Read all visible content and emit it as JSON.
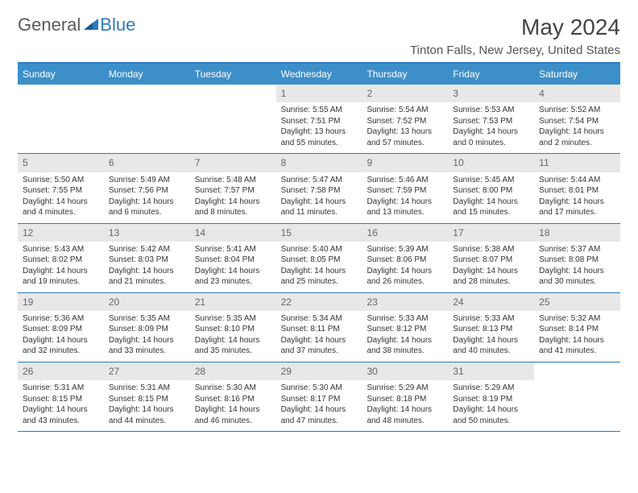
{
  "brand": {
    "name1": "General",
    "name2": "Blue"
  },
  "title": "May 2024",
  "location": "Tinton Falls, New Jersey, United States",
  "colors": {
    "header_bg": "#3d8fc9",
    "border": "#2b7bbf",
    "daynum_bg": "#e8e8e8",
    "text": "#333333"
  },
  "dayHeaders": [
    "Sunday",
    "Monday",
    "Tuesday",
    "Wednesday",
    "Thursday",
    "Friday",
    "Saturday"
  ],
  "weeks": [
    [
      {
        "n": "",
        "sr": "",
        "ss": "",
        "dl": ""
      },
      {
        "n": "",
        "sr": "",
        "ss": "",
        "dl": ""
      },
      {
        "n": "",
        "sr": "",
        "ss": "",
        "dl": ""
      },
      {
        "n": "1",
        "sr": "Sunrise: 5:55 AM",
        "ss": "Sunset: 7:51 PM",
        "dl": "Daylight: 13 hours and 55 minutes."
      },
      {
        "n": "2",
        "sr": "Sunrise: 5:54 AM",
        "ss": "Sunset: 7:52 PM",
        "dl": "Daylight: 13 hours and 57 minutes."
      },
      {
        "n": "3",
        "sr": "Sunrise: 5:53 AM",
        "ss": "Sunset: 7:53 PM",
        "dl": "Daylight: 14 hours and 0 minutes."
      },
      {
        "n": "4",
        "sr": "Sunrise: 5:52 AM",
        "ss": "Sunset: 7:54 PM",
        "dl": "Daylight: 14 hours and 2 minutes."
      }
    ],
    [
      {
        "n": "5",
        "sr": "Sunrise: 5:50 AM",
        "ss": "Sunset: 7:55 PM",
        "dl": "Daylight: 14 hours and 4 minutes."
      },
      {
        "n": "6",
        "sr": "Sunrise: 5:49 AM",
        "ss": "Sunset: 7:56 PM",
        "dl": "Daylight: 14 hours and 6 minutes."
      },
      {
        "n": "7",
        "sr": "Sunrise: 5:48 AM",
        "ss": "Sunset: 7:57 PM",
        "dl": "Daylight: 14 hours and 8 minutes."
      },
      {
        "n": "8",
        "sr": "Sunrise: 5:47 AM",
        "ss": "Sunset: 7:58 PM",
        "dl": "Daylight: 14 hours and 11 minutes."
      },
      {
        "n": "9",
        "sr": "Sunrise: 5:46 AM",
        "ss": "Sunset: 7:59 PM",
        "dl": "Daylight: 14 hours and 13 minutes."
      },
      {
        "n": "10",
        "sr": "Sunrise: 5:45 AM",
        "ss": "Sunset: 8:00 PM",
        "dl": "Daylight: 14 hours and 15 minutes."
      },
      {
        "n": "11",
        "sr": "Sunrise: 5:44 AM",
        "ss": "Sunset: 8:01 PM",
        "dl": "Daylight: 14 hours and 17 minutes."
      }
    ],
    [
      {
        "n": "12",
        "sr": "Sunrise: 5:43 AM",
        "ss": "Sunset: 8:02 PM",
        "dl": "Daylight: 14 hours and 19 minutes."
      },
      {
        "n": "13",
        "sr": "Sunrise: 5:42 AM",
        "ss": "Sunset: 8:03 PM",
        "dl": "Daylight: 14 hours and 21 minutes."
      },
      {
        "n": "14",
        "sr": "Sunrise: 5:41 AM",
        "ss": "Sunset: 8:04 PM",
        "dl": "Daylight: 14 hours and 23 minutes."
      },
      {
        "n": "15",
        "sr": "Sunrise: 5:40 AM",
        "ss": "Sunset: 8:05 PM",
        "dl": "Daylight: 14 hours and 25 minutes."
      },
      {
        "n": "16",
        "sr": "Sunrise: 5:39 AM",
        "ss": "Sunset: 8:06 PM",
        "dl": "Daylight: 14 hours and 26 minutes."
      },
      {
        "n": "17",
        "sr": "Sunrise: 5:38 AM",
        "ss": "Sunset: 8:07 PM",
        "dl": "Daylight: 14 hours and 28 minutes."
      },
      {
        "n": "18",
        "sr": "Sunrise: 5:37 AM",
        "ss": "Sunset: 8:08 PM",
        "dl": "Daylight: 14 hours and 30 minutes."
      }
    ],
    [
      {
        "n": "19",
        "sr": "Sunrise: 5:36 AM",
        "ss": "Sunset: 8:09 PM",
        "dl": "Daylight: 14 hours and 32 minutes."
      },
      {
        "n": "20",
        "sr": "Sunrise: 5:35 AM",
        "ss": "Sunset: 8:09 PM",
        "dl": "Daylight: 14 hours and 33 minutes."
      },
      {
        "n": "21",
        "sr": "Sunrise: 5:35 AM",
        "ss": "Sunset: 8:10 PM",
        "dl": "Daylight: 14 hours and 35 minutes."
      },
      {
        "n": "22",
        "sr": "Sunrise: 5:34 AM",
        "ss": "Sunset: 8:11 PM",
        "dl": "Daylight: 14 hours and 37 minutes."
      },
      {
        "n": "23",
        "sr": "Sunrise: 5:33 AM",
        "ss": "Sunset: 8:12 PM",
        "dl": "Daylight: 14 hours and 38 minutes."
      },
      {
        "n": "24",
        "sr": "Sunrise: 5:33 AM",
        "ss": "Sunset: 8:13 PM",
        "dl": "Daylight: 14 hours and 40 minutes."
      },
      {
        "n": "25",
        "sr": "Sunrise: 5:32 AM",
        "ss": "Sunset: 8:14 PM",
        "dl": "Daylight: 14 hours and 41 minutes."
      }
    ],
    [
      {
        "n": "26",
        "sr": "Sunrise: 5:31 AM",
        "ss": "Sunset: 8:15 PM",
        "dl": "Daylight: 14 hours and 43 minutes."
      },
      {
        "n": "27",
        "sr": "Sunrise: 5:31 AM",
        "ss": "Sunset: 8:15 PM",
        "dl": "Daylight: 14 hours and 44 minutes."
      },
      {
        "n": "28",
        "sr": "Sunrise: 5:30 AM",
        "ss": "Sunset: 8:16 PM",
        "dl": "Daylight: 14 hours and 46 minutes."
      },
      {
        "n": "29",
        "sr": "Sunrise: 5:30 AM",
        "ss": "Sunset: 8:17 PM",
        "dl": "Daylight: 14 hours and 47 minutes."
      },
      {
        "n": "30",
        "sr": "Sunrise: 5:29 AM",
        "ss": "Sunset: 8:18 PM",
        "dl": "Daylight: 14 hours and 48 minutes."
      },
      {
        "n": "31",
        "sr": "Sunrise: 5:29 AM",
        "ss": "Sunset: 8:19 PM",
        "dl": "Daylight: 14 hours and 50 minutes."
      },
      {
        "n": "",
        "sr": "",
        "ss": "",
        "dl": ""
      }
    ]
  ]
}
